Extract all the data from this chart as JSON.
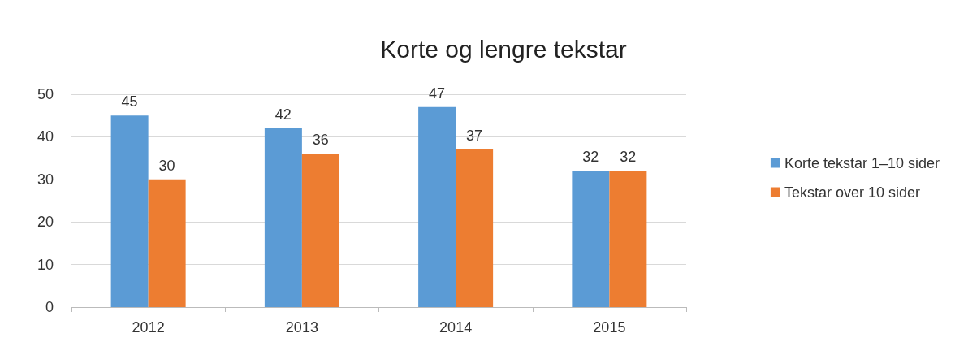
{
  "chart_data": {
    "type": "bar",
    "title": "Korte og lengre tekstar",
    "categories": [
      "2012",
      "2013",
      "2014",
      "2015"
    ],
    "series": [
      {
        "name": "Korte tekstar 1–10 sider",
        "color": "#5b9bd5",
        "values": [
          45,
          42,
          47,
          32
        ]
      },
      {
        "name": "Tekstar over 10 sider",
        "color": "#ed7d31",
        "values": [
          30,
          36,
          37,
          32
        ]
      }
    ],
    "ylim": [
      0,
      50
    ],
    "yticks": [
      0,
      10,
      20,
      30,
      40,
      50
    ],
    "grid": "y",
    "legend": "right",
    "data_labels": true
  }
}
